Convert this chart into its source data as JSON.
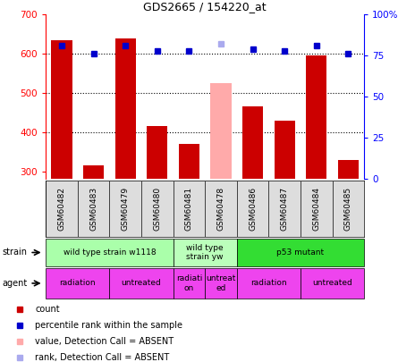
{
  "title": "GDS2665 / 154220_at",
  "samples": [
    "GSM60482",
    "GSM60483",
    "GSM60479",
    "GSM60480",
    "GSM60481",
    "GSM60478",
    "GSM60486",
    "GSM60487",
    "GSM60484",
    "GSM60485"
  ],
  "count_values": [
    635,
    315,
    640,
    415,
    370,
    null,
    465,
    430,
    595,
    330
  ],
  "count_absent": [
    null,
    null,
    null,
    null,
    null,
    525,
    null,
    null,
    null,
    null
  ],
  "rank_values": [
    81,
    76,
    81,
    78,
    78,
    null,
    79,
    78,
    81,
    76
  ],
  "rank_absent": [
    null,
    null,
    null,
    null,
    null,
    82,
    null,
    null,
    null,
    null
  ],
  "ylim_left": [
    280,
    700
  ],
  "ylim_right": [
    0,
    100
  ],
  "yticks_left": [
    300,
    400,
    500,
    600,
    700
  ],
  "yticks_right": [
    0,
    25,
    50,
    75,
    100
  ],
  "strain_groups": [
    {
      "label": "wild type strain w1118",
      "start": 0,
      "end": 4,
      "color": "#aaffaa"
    },
    {
      "label": "wild type\nstrain yw",
      "start": 4,
      "end": 6,
      "color": "#bbffbb"
    },
    {
      "label": "p53 mutant",
      "start": 6,
      "end": 10,
      "color": "#33dd33"
    }
  ],
  "agent_groups": [
    {
      "label": "radiation",
      "start": 0,
      "end": 2,
      "color": "#ee44ee"
    },
    {
      "label": "untreated",
      "start": 2,
      "end": 4,
      "color": "#ee44ee"
    },
    {
      "label": "radiati\non",
      "start": 4,
      "end": 5,
      "color": "#ee44ee"
    },
    {
      "label": "untreat\ned",
      "start": 5,
      "end": 6,
      "color": "#ee44ee"
    },
    {
      "label": "radiation",
      "start": 6,
      "end": 8,
      "color": "#ee44ee"
    },
    {
      "label": "untreated",
      "start": 8,
      "end": 10,
      "color": "#ee44ee"
    }
  ],
  "bar_color_present": "#cc0000",
  "bar_color_absent": "#ffaaaa",
  "dot_color_present": "#0000cc",
  "dot_color_absent": "#aaaaee",
  "legend_items": [
    {
      "color": "#cc0000",
      "shape": "s",
      "label": "count"
    },
    {
      "color": "#0000cc",
      "shape": "s",
      "label": "percentile rank within the sample"
    },
    {
      "color": "#ffaaaa",
      "shape": "s",
      "label": "value, Detection Call = ABSENT"
    },
    {
      "color": "#aaaaee",
      "shape": "s",
      "label": "rank, Detection Call = ABSENT"
    }
  ]
}
